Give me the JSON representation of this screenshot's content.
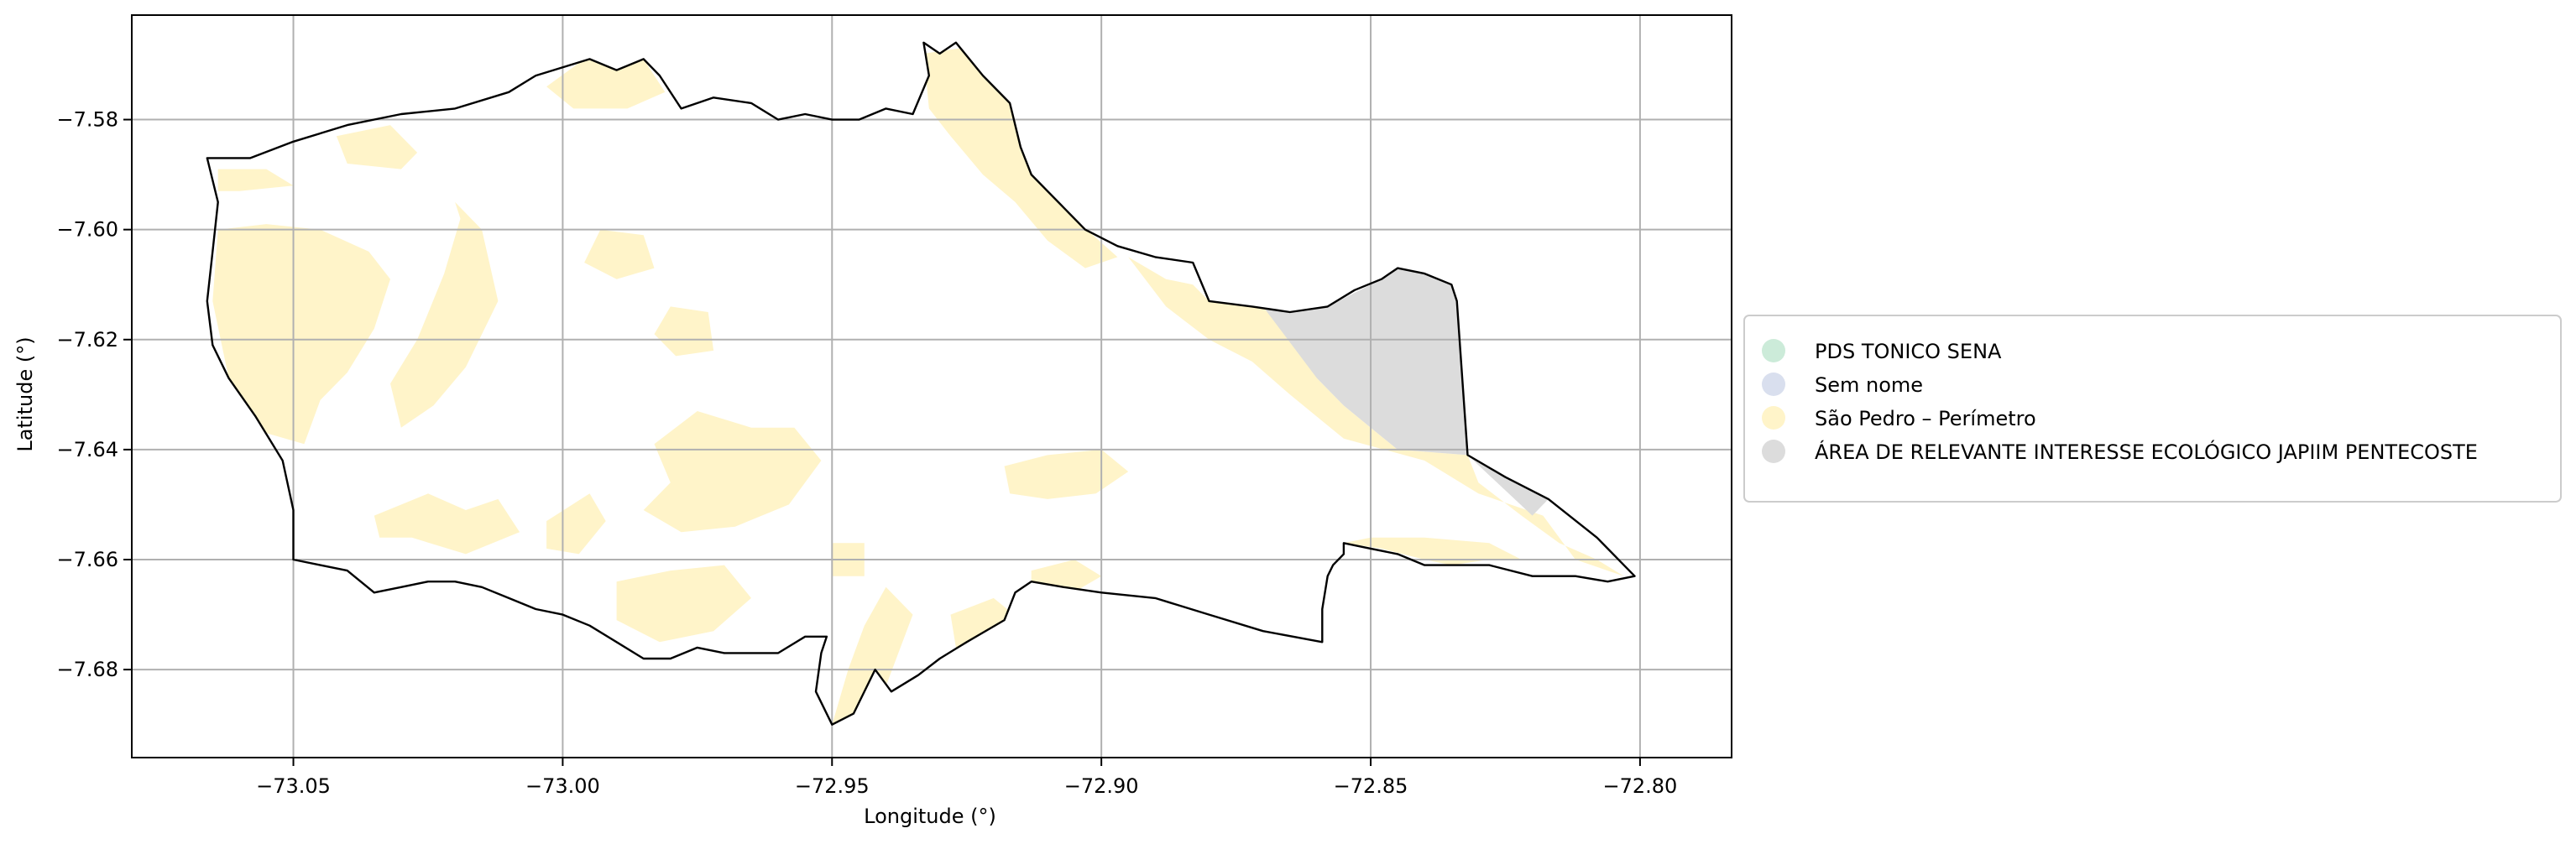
{
  "chart_data": {
    "type": "map",
    "xlabel": "Longitude (°)",
    "ylabel": "Latitude (°)",
    "xlim": [
      -73.08,
      -72.783
    ],
    "ylim": [
      -7.696,
      -7.561
    ],
    "x_ticks": [
      -73.05,
      -73.0,
      -72.95,
      -72.9,
      -72.85,
      -72.8
    ],
    "y_ticks": [
      -7.58,
      -7.6,
      -7.62,
      -7.64,
      -7.66,
      -7.68
    ],
    "x_tick_labels": [
      "−73.05",
      "−73.00",
      "−72.95",
      "−72.90",
      "−72.85",
      "−72.80"
    ],
    "y_tick_labels": [
      "−7.58",
      "−7.60",
      "−7.62",
      "−7.64",
      "−7.66",
      "−7.68"
    ],
    "grid": true,
    "legend_position": "center-right outside",
    "legend": [
      {
        "label": "PDS TONICO SENA",
        "color": "#ccebd9"
      },
      {
        "label": "Sem nome",
        "color": "#d9dfee"
      },
      {
        "label": "São Pedro – Perímetro",
        "color": "#fff4c9"
      },
      {
        "label": "ÁREA DE RELEVANTE INTERESSE ECOLÓGICO JAPIIM PENTECOSTE",
        "color": "#dcdcdc"
      }
    ],
    "outline_color": "#000000",
    "boundary": [
      [
        -73.066,
        -7.587
      ],
      [
        -73.058,
        -7.587
      ],
      [
        -73.05,
        -7.584
      ],
      [
        -73.04,
        -7.581
      ],
      [
        -73.03,
        -7.579
      ],
      [
        -73.02,
        -7.578
      ],
      [
        -73.01,
        -7.575
      ],
      [
        -73.005,
        -7.572
      ],
      [
        -72.995,
        -7.569
      ],
      [
        -72.99,
        -7.571
      ],
      [
        -72.985,
        -7.569
      ],
      [
        -72.982,
        -7.572
      ],
      [
        -72.978,
        -7.578
      ],
      [
        -72.972,
        -7.576
      ],
      [
        -72.965,
        -7.577
      ],
      [
        -72.96,
        -7.58
      ],
      [
        -72.955,
        -7.579
      ],
      [
        -72.95,
        -7.58
      ],
      [
        -72.945,
        -7.58
      ],
      [
        -72.94,
        -7.578
      ],
      [
        -72.935,
        -7.579
      ],
      [
        -72.932,
        -7.572
      ],
      [
        -72.933,
        -7.566
      ],
      [
        -72.93,
        -7.568
      ],
      [
        -72.927,
        -7.566
      ],
      [
        -72.922,
        -7.572
      ],
      [
        -72.917,
        -7.577
      ],
      [
        -72.915,
        -7.585
      ],
      [
        -72.913,
        -7.59
      ],
      [
        -72.908,
        -7.595
      ],
      [
        -72.903,
        -7.6
      ],
      [
        -72.897,
        -7.603
      ],
      [
        -72.89,
        -7.605
      ],
      [
        -72.883,
        -7.606
      ],
      [
        -72.88,
        -7.613
      ],
      [
        -72.872,
        -7.614
      ],
      [
        -72.865,
        -7.615
      ],
      [
        -72.858,
        -7.614
      ],
      [
        -72.853,
        -7.611
      ],
      [
        -72.848,
        -7.609
      ],
      [
        -72.845,
        -7.607
      ],
      [
        -72.84,
        -7.608
      ],
      [
        -72.835,
        -7.61
      ],
      [
        -72.834,
        -7.613
      ],
      [
        -72.832,
        -7.641
      ],
      [
        -72.825,
        -7.645
      ],
      [
        -72.817,
        -7.649
      ],
      [
        -72.808,
        -7.656
      ],
      [
        -72.801,
        -7.663
      ],
      [
        -72.806,
        -7.664
      ],
      [
        -72.812,
        -7.663
      ],
      [
        -72.82,
        -7.663
      ],
      [
        -72.828,
        -7.661
      ],
      [
        -72.835,
        -7.661
      ],
      [
        -72.84,
        -7.661
      ],
      [
        -72.845,
        -7.659
      ],
      [
        -72.85,
        -7.658
      ],
      [
        -72.855,
        -7.657
      ],
      [
        -72.855,
        -7.659
      ],
      [
        -72.857,
        -7.661
      ],
      [
        -72.858,
        -7.663
      ],
      [
        -72.859,
        -7.669
      ],
      [
        -72.859,
        -7.675
      ],
      [
        -72.87,
        -7.673
      ],
      [
        -72.88,
        -7.67
      ],
      [
        -72.89,
        -7.667
      ],
      [
        -72.9,
        -7.666
      ],
      [
        -72.907,
        -7.665
      ],
      [
        -72.913,
        -7.664
      ],
      [
        -72.916,
        -7.666
      ],
      [
        -72.918,
        -7.671
      ],
      [
        -72.925,
        -7.675
      ],
      [
        -72.93,
        -7.678
      ],
      [
        -72.934,
        -7.681
      ],
      [
        -72.939,
        -7.684
      ],
      [
        -72.942,
        -7.68
      ],
      [
        -72.946,
        -7.688
      ],
      [
        -72.95,
        -7.69
      ],
      [
        -72.953,
        -7.684
      ],
      [
        -72.952,
        -7.677
      ],
      [
        -72.951,
        -7.674
      ],
      [
        -72.955,
        -7.674
      ],
      [
        -72.96,
        -7.677
      ],
      [
        -72.965,
        -7.677
      ],
      [
        -72.97,
        -7.677
      ],
      [
        -72.975,
        -7.676
      ],
      [
        -72.98,
        -7.678
      ],
      [
        -72.985,
        -7.678
      ],
      [
        -72.99,
        -7.675
      ],
      [
        -72.995,
        -7.672
      ],
      [
        -73.0,
        -7.67
      ],
      [
        -73.005,
        -7.669
      ],
      [
        -73.01,
        -7.667
      ],
      [
        -73.015,
        -7.665
      ],
      [
        -73.02,
        -7.664
      ],
      [
        -73.025,
        -7.664
      ],
      [
        -73.03,
        -7.665
      ],
      [
        -73.035,
        -7.666
      ],
      [
        -73.04,
        -7.662
      ],
      [
        -73.045,
        -7.661
      ],
      [
        -73.05,
        -7.66
      ],
      [
        -73.05,
        -7.651
      ],
      [
        -73.052,
        -7.642
      ],
      [
        -73.057,
        -7.634
      ],
      [
        -73.062,
        -7.627
      ],
      [
        -73.065,
        -7.621
      ],
      [
        -73.066,
        -7.613
      ],
      [
        -73.065,
        -7.604
      ],
      [
        -73.064,
        -7.595
      ],
      [
        -73.066,
        -7.587
      ]
    ],
    "aire_japiim": [
      [
        -72.87,
        -7.614
      ],
      [
        -72.858,
        -7.614
      ],
      [
        -72.848,
        -7.609
      ],
      [
        -72.845,
        -7.607
      ],
      [
        -72.84,
        -7.608
      ],
      [
        -72.835,
        -7.61
      ],
      [
        -72.834,
        -7.613
      ],
      [
        -72.832,
        -7.641
      ],
      [
        -72.825,
        -7.645
      ],
      [
        -72.817,
        -7.649
      ],
      [
        -72.82,
        -7.652
      ],
      [
        -72.832,
        -7.641
      ],
      [
        -72.845,
        -7.64
      ],
      [
        -72.85,
        -7.636
      ],
      [
        -72.855,
        -7.632
      ],
      [
        -72.86,
        -7.627
      ]
    ],
    "sao_pedro_patches": [
      [
        [
          -73.064,
          -7.6
        ],
        [
          -73.055,
          -7.599
        ],
        [
          -73.045,
          -7.6
        ],
        [
          -73.036,
          -7.604
        ],
        [
          -73.032,
          -7.609
        ],
        [
          -73.035,
          -7.618
        ],
        [
          -73.04,
          -7.626
        ],
        [
          -73.045,
          -7.631
        ],
        [
          -73.048,
          -7.639
        ],
        [
          -73.055,
          -7.637
        ],
        [
          -73.062,
          -7.627
        ],
        [
          -73.065,
          -7.613
        ]
      ],
      [
        [
          -73.064,
          -7.589
        ],
        [
          -73.055,
          -7.589
        ],
        [
          -73.05,
          -7.592
        ],
        [
          -73.06,
          -7.593
        ],
        [
          -73.064,
          -7.593
        ]
      ],
      [
        [
          -73.042,
          -7.583
        ],
        [
          -73.032,
          -7.581
        ],
        [
          -73.027,
          -7.586
        ],
        [
          -73.03,
          -7.589
        ],
        [
          -73.04,
          -7.588
        ]
      ],
      [
        [
          -73.02,
          -7.595
        ],
        [
          -73.015,
          -7.6
        ],
        [
          -73.012,
          -7.613
        ],
        [
          -73.018,
          -7.625
        ],
        [
          -73.024,
          -7.632
        ],
        [
          -73.03,
          -7.636
        ],
        [
          -73.032,
          -7.628
        ],
        [
          -73.027,
          -7.62
        ],
        [
          -73.022,
          -7.608
        ],
        [
          -73.019,
          -7.598
        ]
      ],
      [
        [
          -72.996,
          -7.569
        ],
        [
          -72.985,
          -7.569
        ],
        [
          -72.981,
          -7.575
        ],
        [
          -72.988,
          -7.578
        ],
        [
          -72.998,
          -7.578
        ],
        [
          -73.003,
          -7.574
        ]
      ],
      [
        [
          -72.993,
          -7.6
        ],
        [
          -72.985,
          -7.601
        ],
        [
          -72.983,
          -7.607
        ],
        [
          -72.99,
          -7.609
        ],
        [
          -72.996,
          -7.606
        ]
      ],
      [
        [
          -72.98,
          -7.614
        ],
        [
          -72.973,
          -7.615
        ],
        [
          -72.972,
          -7.622
        ],
        [
          -72.979,
          -7.623
        ],
        [
          -72.983,
          -7.619
        ]
      ],
      [
        [
          -73.035,
          -7.652
        ],
        [
          -73.025,
          -7.648
        ],
        [
          -73.018,
          -7.651
        ],
        [
          -73.012,
          -7.649
        ],
        [
          -73.008,
          -7.655
        ],
        [
          -73.018,
          -7.659
        ],
        [
          -73.028,
          -7.656
        ],
        [
          -73.034,
          -7.656
        ]
      ],
      [
        [
          -73.003,
          -7.653
        ],
        [
          -72.995,
          -7.648
        ],
        [
          -72.992,
          -7.653
        ],
        [
          -72.997,
          -7.659
        ],
        [
          -73.003,
          -7.658
        ]
      ],
      [
        [
          -72.983,
          -7.639
        ],
        [
          -72.975,
          -7.633
        ],
        [
          -72.965,
          -7.636
        ],
        [
          -72.957,
          -7.636
        ],
        [
          -72.952,
          -7.642
        ],
        [
          -72.958,
          -7.65
        ],
        [
          -72.968,
          -7.654
        ],
        [
          -72.978,
          -7.655
        ],
        [
          -72.985,
          -7.651
        ],
        [
          -72.98,
          -7.646
        ]
      ],
      [
        [
          -72.99,
          -7.664
        ],
        [
          -72.98,
          -7.662
        ],
        [
          -72.97,
          -7.661
        ],
        [
          -72.965,
          -7.667
        ],
        [
          -72.972,
          -7.673
        ],
        [
          -72.982,
          -7.675
        ],
        [
          -72.99,
          -7.671
        ]
      ],
      [
        [
          -72.95,
          -7.657
        ],
        [
          -72.944,
          -7.657
        ],
        [
          -72.944,
          -7.663
        ],
        [
          -72.95,
          -7.663
        ]
      ],
      [
        [
          -72.94,
          -7.665
        ],
        [
          -72.935,
          -7.67
        ],
        [
          -72.94,
          -7.683
        ],
        [
          -72.945,
          -7.688
        ],
        [
          -72.95,
          -7.69
        ],
        [
          -72.947,
          -7.68
        ],
        [
          -72.944,
          -7.672
        ]
      ],
      [
        [
          -72.928,
          -7.67
        ],
        [
          -72.92,
          -7.667
        ],
        [
          -72.915,
          -7.671
        ],
        [
          -72.921,
          -7.677
        ],
        [
          -72.927,
          -7.676
        ]
      ],
      [
        [
          -72.918,
          -7.643
        ],
        [
          -72.91,
          -7.641
        ],
        [
          -72.9,
          -7.64
        ],
        [
          -72.895,
          -7.644
        ],
        [
          -72.901,
          -7.648
        ],
        [
          -72.91,
          -7.649
        ],
        [
          -72.917,
          -7.648
        ]
      ],
      [
        [
          -72.913,
          -7.662
        ],
        [
          -72.905,
          -7.66
        ],
        [
          -72.9,
          -7.663
        ],
        [
          -72.907,
          -7.667
        ],
        [
          -72.913,
          -7.666
        ]
      ],
      [
        [
          -72.933,
          -7.568
        ],
        [
          -72.926,
          -7.567
        ],
        [
          -72.92,
          -7.572
        ],
        [
          -72.915,
          -7.58
        ],
        [
          -72.912,
          -7.59
        ],
        [
          -72.905,
          -7.598
        ],
        [
          -72.897,
          -7.605
        ],
        [
          -72.903,
          -7.607
        ],
        [
          -72.91,
          -7.602
        ],
        [
          -72.916,
          -7.595
        ],
        [
          -72.922,
          -7.59
        ],
        [
          -72.928,
          -7.583
        ],
        [
          -72.932,
          -7.578
        ]
      ],
      [
        [
          -72.895,
          -7.605
        ],
        [
          -72.888,
          -7.609
        ],
        [
          -72.883,
          -7.61
        ],
        [
          -72.88,
          -7.613
        ],
        [
          -72.872,
          -7.614
        ],
        [
          -72.862,
          -7.614
        ],
        [
          -72.86,
          -7.627
        ],
        [
          -72.855,
          -7.632
        ],
        [
          -72.85,
          -7.636
        ],
        [
          -72.845,
          -7.64
        ],
        [
          -72.832,
          -7.641
        ],
        [
          -72.83,
          -7.646
        ],
        [
          -72.822,
          -7.652
        ],
        [
          -72.815,
          -7.657
        ],
        [
          -72.808,
          -7.66
        ],
        [
          -72.803,
          -7.663
        ],
        [
          -72.812,
          -7.66
        ],
        [
          -72.818,
          -7.652
        ],
        [
          -72.83,
          -7.648
        ],
        [
          -72.84,
          -7.642
        ],
        [
          -72.855,
          -7.638
        ],
        [
          -72.865,
          -7.63
        ],
        [
          -72.872,
          -7.624
        ],
        [
          -72.88,
          -7.62
        ],
        [
          -72.888,
          -7.614
        ]
      ],
      [
        [
          -72.855,
          -7.657
        ],
        [
          -72.848,
          -7.658
        ],
        [
          -72.84,
          -7.66
        ],
        [
          -72.835,
          -7.661
        ],
        [
          -72.828,
          -7.66
        ],
        [
          -72.822,
          -7.66
        ],
        [
          -72.828,
          -7.657
        ],
        [
          -72.84,
          -7.656
        ],
        [
          -72.85,
          -7.656
        ]
      ]
    ]
  }
}
